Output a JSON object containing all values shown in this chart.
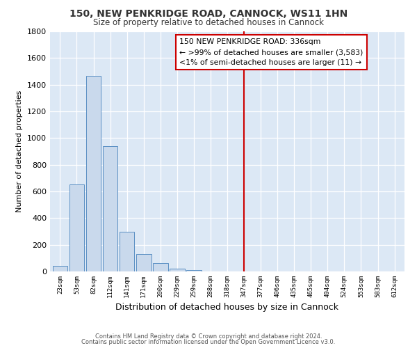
{
  "title": "150, NEW PENKRIDGE ROAD, CANNOCK, WS11 1HN",
  "subtitle": "Size of property relative to detached houses in Cannock",
  "xlabel": "Distribution of detached houses by size in Cannock",
  "ylabel": "Number of detached properties",
  "bar_labels": [
    "23sqm",
    "53sqm",
    "82sqm",
    "112sqm",
    "141sqm",
    "171sqm",
    "200sqm",
    "229sqm",
    "259sqm",
    "288sqm",
    "318sqm",
    "347sqm",
    "377sqm",
    "406sqm",
    "435sqm",
    "465sqm",
    "494sqm",
    "524sqm",
    "553sqm",
    "583sqm",
    "612sqm"
  ],
  "bar_values": [
    40,
    650,
    1465,
    940,
    295,
    130,
    65,
    22,
    10,
    0,
    0,
    0,
    0,
    0,
    0,
    0,
    0,
    0,
    0,
    0,
    0
  ],
  "bar_color": "#c9d9ec",
  "bar_edgecolor": "#5a8fc3",
  "vline_x": 11,
  "vline_color": "#cc0000",
  "ylim": [
    0,
    1800
  ],
  "yticks": [
    0,
    200,
    400,
    600,
    800,
    1000,
    1200,
    1400,
    1600,
    1800
  ],
  "annotation_title": "150 NEW PENKRIDGE ROAD: 336sqm",
  "annotation_line1": "← >99% of detached houses are smaller (3,583)",
  "annotation_line2": "<1% of semi-detached houses are larger (11) →",
  "annotation_box_edgecolor": "#cc0000",
  "annotation_box_facecolor": "#ffffff",
  "footer_line1": "Contains HM Land Registry data © Crown copyright and database right 2024.",
  "footer_line2": "Contains public sector information licensed under the Open Government Licence v3.0.",
  "fig_background_color": "#ffffff",
  "plot_background_color": "#dce8f5"
}
